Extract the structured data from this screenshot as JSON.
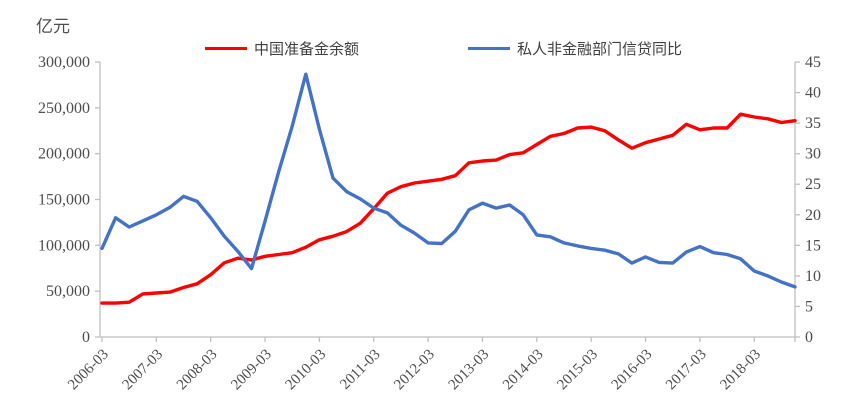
{
  "axis_title": "亿元",
  "legend": {
    "items": [
      {
        "label": "中国准备金余额",
        "color": "#fe0000"
      },
      {
        "label": "私人非金融部门信贷同比",
        "color": "#4472c4"
      }
    ]
  },
  "colors": {
    "axis_line": "#bfbfbf",
    "tick_text": "#4d4d4d",
    "series_red": "#fe0000",
    "series_blue": "#4472c4"
  },
  "chart_data": {
    "type": "line",
    "title": "",
    "x_frequency": "quarterly",
    "x_start": "2006-03",
    "x_end": "2018-12",
    "x_tick_labels": [
      "2006-03",
      "2007-03",
      "2008-03",
      "2009-03",
      "2010-03",
      "2011-03",
      "2012-03",
      "2013-03",
      "2014-03",
      "2015-03",
      "2016-03",
      "2017-03",
      "2018-03"
    ],
    "y_left": {
      "label": "亿元",
      "min": 0,
      "max": 300000,
      "step": 50000,
      "tick_labels": [
        "0",
        "50,000",
        "100,000",
        "150,000",
        "200,000",
        "250,000",
        "300,000"
      ]
    },
    "y_right": {
      "min": 0,
      "max": 45,
      "step": 5,
      "tick_labels": [
        "0",
        "5",
        "10",
        "15",
        "20",
        "25",
        "30",
        "35",
        "40",
        "45"
      ]
    },
    "grid": false,
    "legend_position": "top",
    "series": [
      {
        "name": "中国准备金余额",
        "axis": "left",
        "color": "#fe0000",
        "values": [
          37000,
          37000,
          38000,
          47000,
          48000,
          49000,
          54000,
          58000,
          68000,
          81000,
          86000,
          84000,
          88000,
          90000,
          92000,
          98000,
          106000,
          110000,
          115000,
          124000,
          140000,
          157000,
          164000,
          168000,
          170000,
          172000,
          176000,
          190000,
          192000,
          193000,
          199000,
          201000,
          210000,
          219000,
          222000,
          228000,
          229000,
          225000,
          215000,
          206000,
          212000,
          216000,
          220000,
          232000,
          226000,
          228000,
          228000,
          243000,
          240000,
          238000,
          234000,
          236000
        ]
      },
      {
        "name": "私人非金融部门信贷同比",
        "axis": "right",
        "color": "#4472c4",
        "values": [
          14.5,
          19.5,
          18.0,
          19.0,
          20.0,
          21.2,
          23.0,
          22.2,
          19.5,
          16.5,
          14.0,
          11.2,
          19.0,
          27.0,
          34.5,
          43.0,
          34.0,
          26.0,
          23.8,
          22.6,
          21.1,
          20.3,
          18.3,
          17.0,
          15.4,
          15.3,
          17.3,
          20.8,
          21.9,
          21.1,
          21.6,
          20.0,
          16.7,
          16.4,
          15.4,
          14.9,
          14.5,
          14.2,
          13.6,
          12.1,
          13.1,
          12.2,
          12.1,
          13.9,
          14.8,
          13.8,
          13.5,
          12.8,
          10.8,
          10.0,
          9.0,
          8.2
        ]
      }
    ]
  }
}
